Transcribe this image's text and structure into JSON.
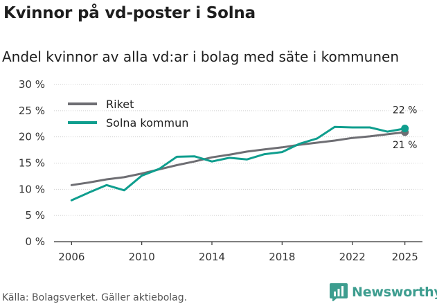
{
  "title": "Kvinnor på vd-poster i Solna",
  "subtitle": "Andel kvinnor av alla vd:ar i bolag med säte i kommunen",
  "source": "Källa: Bolagsverket. Gäller aktiebolag.",
  "brand": {
    "name": "Newsworthy",
    "logo_icon": "bar-chart-logo-icon",
    "color": "#3d9d8f"
  },
  "colors": {
    "riket": "#6e6e73",
    "solna": "#0f9e8e",
    "axis": "#333333"
  },
  "chart_data": {
    "type": "line",
    "title": "Kvinnor på vd-poster i Solna",
    "xlabel": "",
    "ylabel": "",
    "xlim": [
      2005,
      2026
    ],
    "ylim": [
      0,
      30
    ],
    "x_ticks": [
      2006,
      2010,
      2014,
      2018,
      2022,
      2025
    ],
    "x_tick_labels": [
      "2006",
      "2010",
      "2014",
      "2018",
      "2022",
      "2025"
    ],
    "y_ticks": [
      0,
      5,
      10,
      15,
      20,
      25,
      30
    ],
    "y_tick_labels": [
      "0 %",
      "5 %",
      "10 %",
      "15 %",
      "20 %",
      "25 %",
      "30 %"
    ],
    "legend_position": "top-left",
    "x": [
      2006,
      2007,
      2008,
      2009,
      2010,
      2011,
      2012,
      2013,
      2014,
      2015,
      2016,
      2017,
      2018,
      2019,
      2020,
      2021,
      2022,
      2023,
      2024,
      2025
    ],
    "series": [
      {
        "name": "Riket",
        "color": "#6e6e73",
        "values": [
          10.8,
          11.3,
          11.9,
          12.3,
          13.0,
          13.8,
          14.6,
          15.3,
          16.1,
          16.6,
          17.2,
          17.6,
          18.0,
          18.5,
          18.9,
          19.3,
          19.8,
          20.1,
          20.5,
          20.9
        ],
        "end_label": "21 %"
      },
      {
        "name": "Solna kommun",
        "color": "#0f9e8e",
        "values": [
          7.9,
          9.4,
          10.8,
          9.8,
          12.6,
          13.9,
          16.2,
          16.3,
          15.3,
          16.0,
          15.7,
          16.7,
          17.1,
          18.7,
          19.7,
          21.9,
          21.8,
          21.8,
          21.0,
          21.6
        ],
        "end_label": "22 %"
      }
    ]
  }
}
